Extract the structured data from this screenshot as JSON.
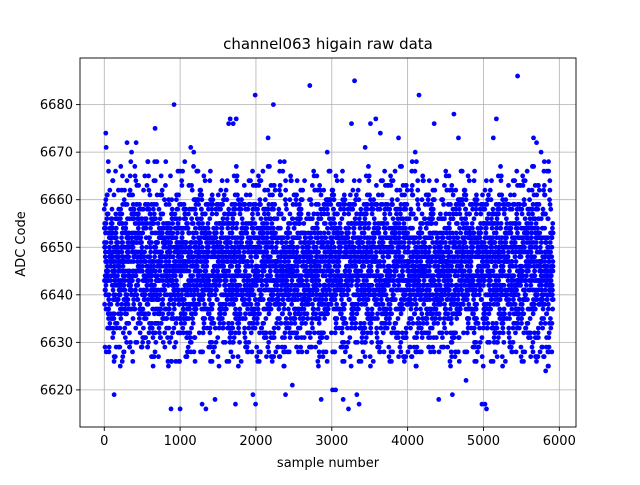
{
  "chart_data": {
    "type": "scatter",
    "title": "channel063 higain raw data",
    "xlabel": "sample number",
    "ylabel": "ADC Code",
    "xlim": [
      -320,
      6220
    ],
    "ylim": [
      6612.2,
      6689.8
    ],
    "xticks": [
      0,
      1000,
      2000,
      3000,
      4000,
      5000,
      6000
    ],
    "yticks": [
      6620,
      6630,
      6640,
      6650,
      6660,
      6670,
      6680
    ],
    "grid": true,
    "marker_color": "#0000ff",
    "n_samples": 5920,
    "typical_range": [
      6625,
      6668
    ],
    "center": 6646,
    "outliers": [
      [
        20,
        6674
      ],
      [
        25,
        6671
      ],
      [
        130,
        6619
      ],
      [
        300,
        6672
      ],
      [
        360,
        6670
      ],
      [
        420,
        6672
      ],
      [
        670,
        6675
      ],
      [
        920,
        6680
      ],
      [
        880,
        6616
      ],
      [
        1000,
        6616
      ],
      [
        1140,
        6671
      ],
      [
        1180,
        6670
      ],
      [
        1290,
        6617
      ],
      [
        1340,
        6616
      ],
      [
        1460,
        6618
      ],
      [
        1640,
        6676
      ],
      [
        1660,
        6677
      ],
      [
        1700,
        6676
      ],
      [
        1740,
        6677
      ],
      [
        1730,
        6617
      ],
      [
        1960,
        6619
      ],
      [
        1990,
        6682
      ],
      [
        1995,
        6617
      ],
      [
        2160,
        6673
      ],
      [
        2230,
        6680
      ],
      [
        2390,
        6619
      ],
      [
        2480,
        6621
      ],
      [
        2710,
        6684
      ],
      [
        2860,
        6618
      ],
      [
        2940,
        6670
      ],
      [
        3010,
        6620
      ],
      [
        3050,
        6620
      ],
      [
        3150,
        6618
      ],
      [
        3220,
        6616
      ],
      [
        3260,
        6676
      ],
      [
        3300,
        6685
      ],
      [
        3330,
        6619
      ],
      [
        3360,
        6617
      ],
      [
        3440,
        6671
      ],
      [
        3510,
        6676
      ],
      [
        3580,
        6677
      ],
      [
        3640,
        6674
      ],
      [
        3880,
        6673
      ],
      [
        4100,
        6670
      ],
      [
        4150,
        6682
      ],
      [
        4350,
        6676
      ],
      [
        4410,
        6618
      ],
      [
        4610,
        6678
      ],
      [
        4590,
        6619
      ],
      [
        4670,
        6673
      ],
      [
        4770,
        6622
      ],
      [
        4980,
        6617
      ],
      [
        5020,
        6617
      ],
      [
        5040,
        6616
      ],
      [
        5130,
        6673
      ],
      [
        5170,
        6677
      ],
      [
        5450,
        6686
      ],
      [
        5660,
        6673
      ],
      [
        5700,
        6672
      ],
      [
        5760,
        6670
      ],
      [
        5820,
        6624
      ],
      [
        5860,
        6666
      ]
    ]
  }
}
